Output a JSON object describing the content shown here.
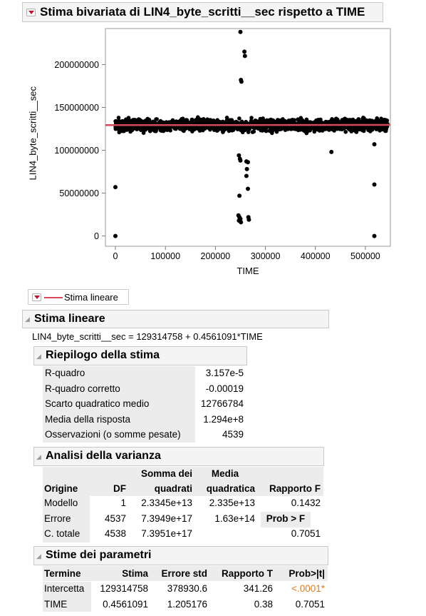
{
  "main_title": "Stima bivariata di LIN4_byte_scritti__sec rispetto a TIME",
  "chart_data": {
    "type": "scatter",
    "xlabel": "TIME",
    "ylabel": "LIN4_byte_scritti__sec",
    "xlim": [
      -20000,
      550000
    ],
    "ylim": [
      -12000000,
      242000000
    ],
    "x_ticks": [
      "0",
      "100000",
      "200000",
      "300000",
      "400000",
      "500000"
    ],
    "y_ticks": [
      "0",
      "50000000",
      "100000000",
      "150000000",
      "200000000"
    ],
    "x_tick_values": [
      0,
      100000,
      200000,
      300000,
      400000,
      500000
    ],
    "y_tick_values": [
      0,
      50000000,
      100000000,
      150000000,
      200000000
    ],
    "dense_band": {
      "x_range": [
        0,
        545000
      ],
      "y_range": [
        120000000,
        140000000
      ],
      "center": 129314758
    },
    "outliers": [
      [
        0,
        57000000
      ],
      [
        0,
        0
      ],
      [
        250000,
        238000000
      ],
      [
        258000,
        215000000
      ],
      [
        259000,
        210000000
      ],
      [
        251000,
        182000000
      ],
      [
        252000,
        180000000
      ],
      [
        247000,
        94000000
      ],
      [
        249000,
        90000000
      ],
      [
        250000,
        88000000
      ],
      [
        262000,
        87000000
      ],
      [
        265000,
        86000000
      ],
      [
        263000,
        78000000
      ],
      [
        262000,
        70000000
      ],
      [
        265000,
        55000000
      ],
      [
        248000,
        47000000
      ],
      [
        246000,
        24000000
      ],
      [
        248000,
        22000000
      ],
      [
        250000,
        20000000
      ],
      [
        247000,
        18000000
      ],
      [
        251000,
        16000000
      ],
      [
        266000,
        22000000
      ],
      [
        267000,
        19000000
      ],
      [
        432000,
        98000000
      ],
      [
        518000,
        107000000
      ],
      [
        518000,
        60000000
      ],
      [
        518000,
        0
      ]
    ],
    "fit_line": {
      "intercept": 129314758,
      "slope": 0.4561091,
      "color": "#d6485a"
    },
    "point_color": "#000000"
  },
  "legend": {
    "label": "Stima lineare",
    "line_color": "#d6485a"
  },
  "linear_fit": {
    "title": "Stima lineare",
    "equation": "LIN4_byte_scritti__sec = 129314758 + 0.4561091*TIME"
  },
  "summary": {
    "title": "Riepilogo della stima",
    "rows": [
      {
        "label": "R-quadro",
        "value": "3.157e-5"
      },
      {
        "label": "R-quadro corretto",
        "value": "-0.00019"
      },
      {
        "label": "Scarto quadratico medio",
        "value": "12766784"
      },
      {
        "label": "Media della risposta",
        "value": "1.294e+8"
      },
      {
        "label": "Osservazioni (o somme pesate)",
        "value": "4539"
      }
    ]
  },
  "anova": {
    "title": "Analisi della varianza",
    "headers": {
      "origine": "Origine",
      "df": "DF",
      "ss1": "Somma dei",
      "ss2": "quadrati",
      "ms1": "Media",
      "ms2": "quadratica",
      "f": "Rapporto F"
    },
    "rows": [
      {
        "origine": "Modello",
        "df": "1",
        "ss": "2.3345e+13",
        "ms": "2.335e+13",
        "f": "0.1432"
      },
      {
        "origine": "Errore",
        "df": "4537",
        "ss": "7.3949e+17",
        "ms": "1.63e+14",
        "f": "Prob > F"
      },
      {
        "origine": "C. totale",
        "df": "4538",
        "ss": "7.3951e+17",
        "ms": "",
        "f": "0.7051"
      }
    ]
  },
  "params": {
    "title": "Stime dei parametri",
    "headers": {
      "termine": "Termine",
      "stima": "Stima",
      "err": "Errore std",
      "t": "Rapporto T",
      "p": "Prob>|t|"
    },
    "rows": [
      {
        "termine": "Intercetta",
        "stima": "129314758",
        "err": "378930.6",
        "t": "341.26",
        "p": "<.0001*"
      },
      {
        "termine": "TIME",
        "stima": "0.4561091",
        "err": "1.205176",
        "t": "0.38",
        "p": "0.7051"
      }
    ],
    "sig_color": "#e07b1a"
  }
}
